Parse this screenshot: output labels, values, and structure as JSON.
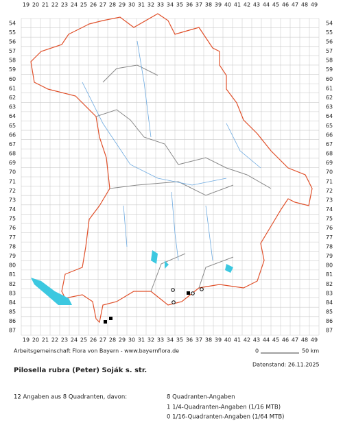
{
  "grid": {
    "columns": [
      19,
      20,
      21,
      22,
      23,
      24,
      25,
      26,
      27,
      28,
      29,
      30,
      31,
      32,
      33,
      34,
      35,
      36,
      37,
      38,
      39,
      40,
      41,
      42,
      43,
      44,
      45,
      46,
      47,
      48,
      49
    ],
    "rows": [
      54,
      55,
      56,
      57,
      58,
      59,
      60,
      61,
      62,
      63,
      64,
      65,
      66,
      67,
      68,
      69,
      70,
      71,
      72,
      73,
      74,
      75,
      76,
      77,
      78,
      79,
      80,
      81,
      82,
      83,
      84,
      85,
      86,
      87
    ]
  },
  "credit": "Arbeitsgemeinschaft Flora von Bayern - www.bayernflora.de",
  "scale": {
    "start": "0",
    "end": "50 km"
  },
  "date": "Datenstand: 26.11.2025",
  "title": "Pilosella rubra (Peter) Soják s. str.",
  "summary": "12 Angaben aus 8 Quadranten, davon:",
  "breakdown": [
    "8 Quadranten-Angaben",
    "1 1/4-Quadranten-Angaben (1/16 MTB)",
    "0 1/16-Quadranten-Angaben (1/64 MTB)"
  ]
}
